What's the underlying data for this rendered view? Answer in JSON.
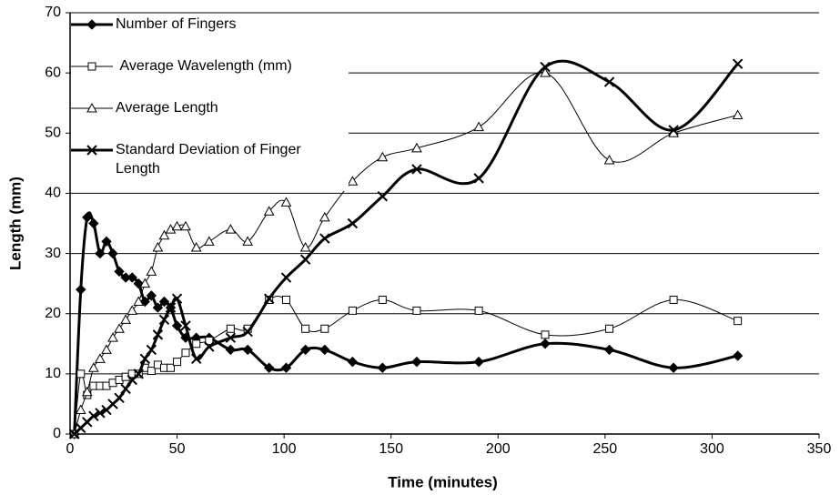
{
  "chart_data": {
    "type": "line",
    "x_label": "Time (minutes)",
    "y_label": "Length (mm)",
    "x": [
      2,
      5,
      8,
      11,
      14,
      17,
      20,
      23,
      26,
      29,
      32,
      35,
      38,
      41,
      44,
      47,
      50,
      54,
      59,
      65,
      75,
      83,
      93,
      101,
      110,
      119,
      132,
      146,
      162,
      191,
      222,
      252,
      282,
      312
    ],
    "series": [
      {
        "name": "Number of Fingers",
        "color": "#000000",
        "marker": "diamond",
        "line_width": 3,
        "values": [
          0,
          24,
          36,
          35,
          30,
          32,
          30,
          27,
          26,
          26,
          25,
          22,
          23,
          21,
          22,
          21,
          18,
          16,
          16,
          16,
          14,
          14,
          11,
          11,
          14,
          14,
          12,
          11,
          12,
          12,
          15,
          14,
          11,
          13
        ]
      },
      {
        "name": " Average Wavelength (mm)",
        "color": "#000000",
        "marker": "square",
        "line_width": 1,
        "values": [
          0,
          10,
          6.5,
          8,
          8,
          8,
          8.5,
          9,
          9.5,
          10,
          10,
          11,
          10.5,
          11.5,
          11,
          11,
          12,
          13.5,
          15,
          15.5,
          17.5,
          17.5,
          22.3,
          22.3,
          17.5,
          17.5,
          20.5,
          22.3,
          20.5,
          20.5,
          16.5,
          17.5,
          22.3,
          18.8
        ]
      },
      {
        "name": "Average Length",
        "color": "#000000",
        "marker": "triangle",
        "line_width": 1,
        "values": [
          0,
          4,
          7,
          11,
          12.5,
          14,
          16,
          17.5,
          19,
          20.5,
          22,
          25,
          27,
          31,
          33,
          34,
          34.5,
          34.5,
          31,
          32,
          34,
          32,
          37,
          38.5,
          31,
          36,
          42,
          46,
          47.5,
          51,
          60,
          45.5,
          50,
          53
        ]
      },
      {
        "name": "Standard Deviation of Finger Length",
        "color": "#000000",
        "marker": "x",
        "line_width": 3,
        "values": [
          0,
          1,
          2,
          3,
          3.5,
          4,
          5,
          6,
          7.5,
          9,
          10,
          12.5,
          14,
          16.5,
          19,
          21,
          22.5,
          18,
          12.5,
          14.5,
          16,
          17,
          22.5,
          26,
          29,
          32.5,
          35,
          39.5,
          44,
          42.5,
          61,
          58.5,
          50.5,
          61.5
        ]
      }
    ],
    "xlim": [
      0,
      350
    ],
    "xticks": [
      0,
      50,
      100,
      150,
      200,
      250,
      300,
      350
    ],
    "ylim": [
      0,
      70
    ],
    "yticks": [
      0,
      10,
      20,
      30,
      40,
      50,
      60,
      70
    ],
    "grid": true,
    "legend": "top-left"
  }
}
